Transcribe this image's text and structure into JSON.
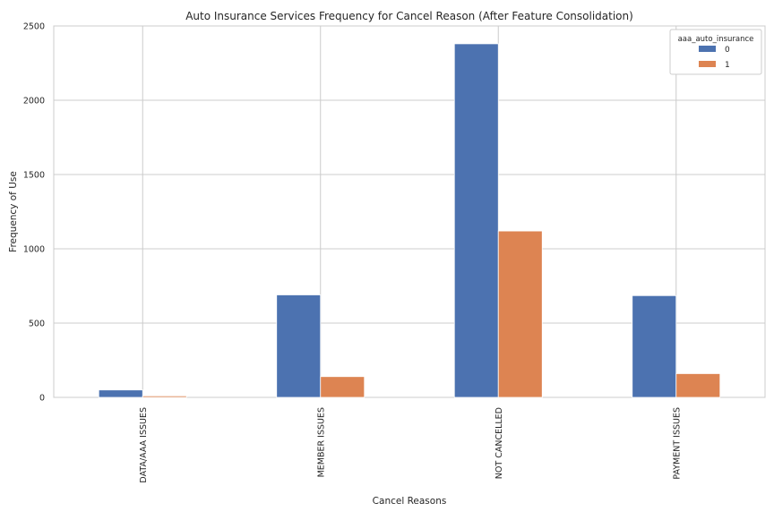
{
  "chart_data": {
    "type": "bar",
    "title": "Auto Insurance Services Frequency for Cancel Reason (After Feature Consolidation)",
    "xlabel": "Cancel Reasons",
    "ylabel": "Frequency of Use",
    "categories": [
      "DATA/AAA ISSUES",
      "MEMBER ISSUES",
      "NOT CANCELLED",
      "PAYMENT ISSUES"
    ],
    "series": [
      {
        "name": "0",
        "values": [
          50,
          690,
          2380,
          685
        ],
        "color": "#4c72b0"
      },
      {
        "name": "1",
        "values": [
          10,
          140,
          1120,
          160
        ],
        "color": "#dd8452"
      }
    ],
    "ylim": [
      0,
      2500
    ],
    "yticks": [
      0,
      500,
      1000,
      1500,
      2000,
      2500
    ],
    "grid": true,
    "legend": {
      "title": "aaa_auto_insurance",
      "placement": "top-right"
    }
  }
}
